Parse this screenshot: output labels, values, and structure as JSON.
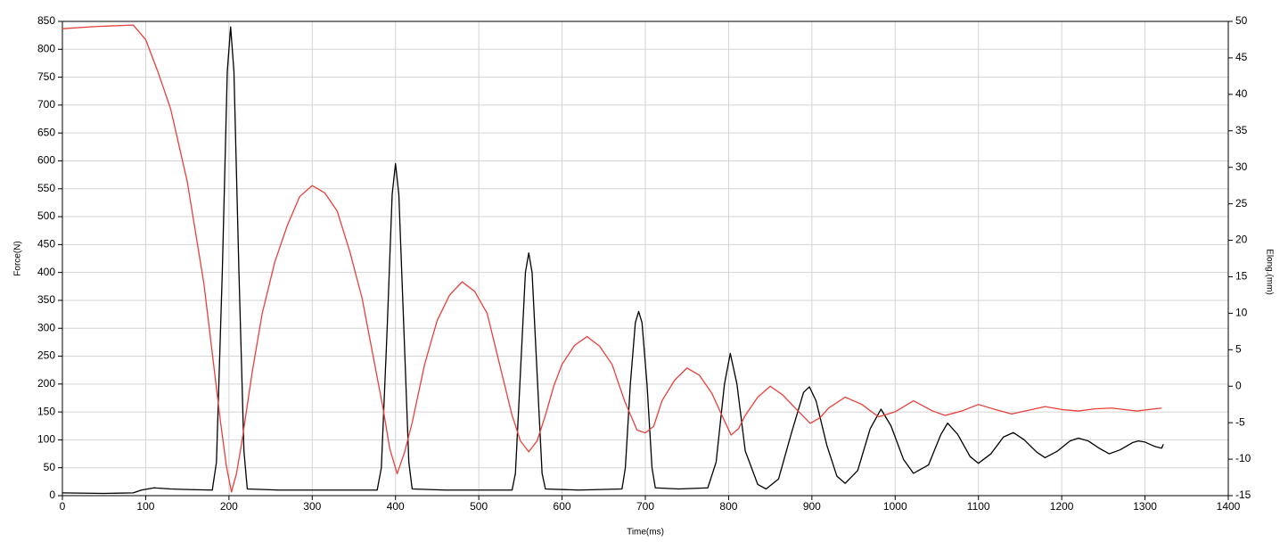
{
  "chart_data": {
    "type": "line",
    "x_label": "Time(ms)",
    "y_label": "Force(N)",
    "y2_label": "Elong.(mm)",
    "xlim": [
      0,
      1400
    ],
    "xticks": [
      0,
      100,
      200,
      300,
      400,
      500,
      600,
      700,
      800,
      900,
      1000,
      1100,
      1200,
      1300,
      1400
    ],
    "ylim": [
      0,
      850
    ],
    "yticks": [
      0,
      50,
      100,
      150,
      200,
      250,
      300,
      350,
      400,
      450,
      500,
      550,
      600,
      650,
      700,
      750,
      800,
      850
    ],
    "y2lim": [
      -15,
      50
    ],
    "y2ticks": [
      -15,
      -10,
      -5,
      0,
      5,
      10,
      15,
      20,
      25,
      30,
      35,
      40,
      45,
      50
    ],
    "grid": true,
    "series": [
      {
        "name": "Force",
        "color": "#000000",
        "x": [
          0,
          50,
          85,
          95,
          110,
          130,
          150,
          180,
          185,
          192,
          198,
          202,
          206,
          212,
          218,
          222,
          260,
          300,
          340,
          378,
          383,
          390,
          396,
          400,
          404,
          410,
          416,
          420,
          460,
          500,
          540,
          544,
          550,
          556,
          560,
          564,
          570,
          576,
          580,
          620,
          672,
          676,
          682,
          688,
          692,
          696,
          702,
          708,
          712,
          740,
          775,
          785,
          795,
          802,
          810,
          820,
          835,
          845,
          860,
          875,
          890,
          897,
          905,
          918,
          930,
          940,
          955,
          970,
          983,
          995,
          1010,
          1022,
          1040,
          1055,
          1063,
          1075,
          1090,
          1100,
          1115,
          1130,
          1142,
          1155,
          1170,
          1180,
          1195,
          1210,
          1220,
          1232,
          1245,
          1257,
          1270,
          1285,
          1292,
          1300,
          1312,
          1320,
          1322
        ],
        "values": [
          5,
          4,
          5,
          10,
          14,
          12,
          11,
          10,
          60,
          400,
          760,
          840,
          760,
          400,
          80,
          12,
          10,
          10,
          10,
          10,
          50,
          300,
          540,
          595,
          540,
          300,
          60,
          12,
          10,
          10,
          10,
          40,
          220,
          400,
          435,
          400,
          220,
          40,
          12,
          10,
          12,
          50,
          200,
          310,
          330,
          310,
          200,
          50,
          14,
          12,
          14,
          60,
          200,
          255,
          200,
          80,
          20,
          12,
          30,
          110,
          185,
          195,
          170,
          90,
          35,
          22,
          45,
          120,
          155,
          125,
          65,
          40,
          55,
          110,
          130,
          110,
          70,
          58,
          75,
          105,
          113,
          100,
          78,
          68,
          80,
          98,
          103,
          98,
          85,
          75,
          82,
          95,
          98,
          96,
          88,
          85,
          92
        ]
      },
      {
        "name": "Elong",
        "color": "#e8403a",
        "axis": "y2",
        "x": [
          0,
          40,
          85,
          100,
          115,
          130,
          150,
          170,
          190,
          197,
          203,
          209,
          215,
          228,
          240,
          255,
          270,
          285,
          300,
          315,
          330,
          345,
          360,
          375,
          385,
          393,
          402,
          411,
          420,
          435,
          450,
          465,
          480,
          495,
          510,
          525,
          540,
          550,
          560,
          570,
          580,
          590,
          600,
          615,
          630,
          645,
          660,
          675,
          690,
          700,
          710,
          720,
          735,
          750,
          765,
          780,
          792,
          803,
          812,
          820,
          835,
          850,
          865,
          880,
          898,
          910,
          920,
          940,
          960,
          980,
          1000,
          1022,
          1045,
          1060,
          1080,
          1100,
          1120,
          1140,
          1160,
          1180,
          1200,
          1220,
          1240,
          1260,
          1290,
          1320
        ],
        "values": [
          49,
          49.3,
          49.5,
          47.5,
          43,
          38,
          28,
          14,
          -5,
          -11,
          -14.5,
          -12,
          -8,
          2,
          10,
          17,
          22,
          26,
          27.5,
          26.5,
          24,
          18.5,
          12,
          3,
          -3,
          -8.5,
          -12,
          -9,
          -5,
          3,
          9,
          12.5,
          14.3,
          13,
          10,
          3,
          -4,
          -7.5,
          -9,
          -7.5,
          -4,
          0,
          3,
          5.6,
          6.8,
          5.5,
          3,
          -2,
          -6,
          -6.4,
          -5.5,
          -2,
          0.8,
          2.5,
          1.5,
          -1,
          -4,
          -6.7,
          -5.8,
          -4,
          -1.5,
          0,
          -1.2,
          -3,
          -5.1,
          -4.3,
          -3,
          -1.5,
          -2.5,
          -4.2,
          -3.5,
          -2,
          -3.4,
          -4,
          -3.4,
          -2.5,
          -3.2,
          -3.8,
          -3.3,
          -2.8,
          -3.2,
          -3.4,
          -3.1,
          -3,
          -3.4,
          -3
        ]
      }
    ]
  }
}
